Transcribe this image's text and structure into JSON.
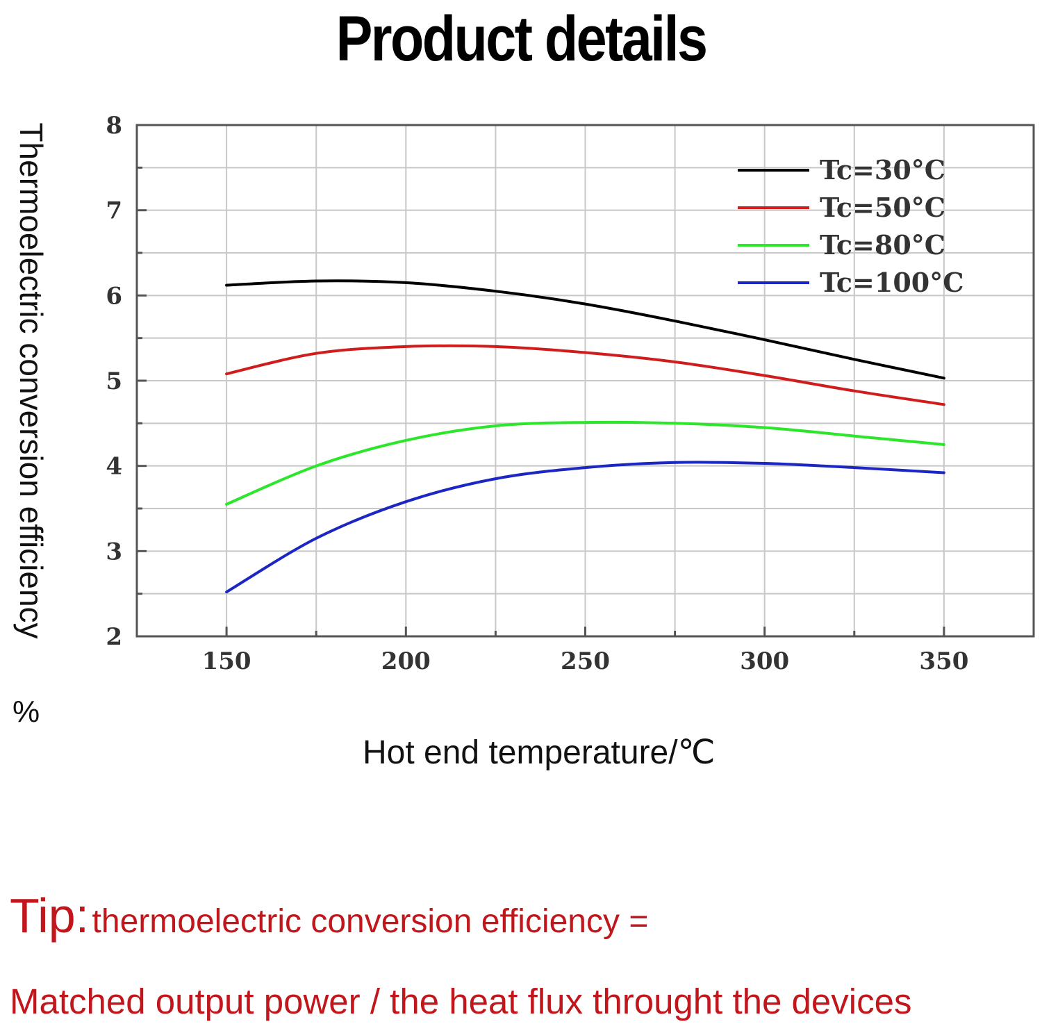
{
  "title": "Product details",
  "tip": {
    "label": "Tip:",
    "line1": "thermoelectric conversion efficiency =",
    "line2": "Matched output power / the heat flux throught the devices"
  },
  "chart_data": {
    "type": "line",
    "title": "Product details",
    "xlabel": "Hot end temperature/℃",
    "ylabel": "Thermoelectric conversion efficiency",
    "yunit": "%",
    "xlim": [
      125,
      375
    ],
    "ylim": [
      2,
      8
    ],
    "xticks": [
      150,
      200,
      250,
      300,
      350
    ],
    "yticks": [
      2,
      3,
      4,
      5,
      6,
      7,
      8
    ],
    "grid": true,
    "legend_position": "top-right",
    "x": [
      150,
      175,
      200,
      225,
      250,
      275,
      300,
      325,
      350
    ],
    "series": [
      {
        "name": "Tc=30°C",
        "color": "#000000",
        "values": [
          6.12,
          6.17,
          6.15,
          6.05,
          5.9,
          5.7,
          5.48,
          5.25,
          5.03
        ]
      },
      {
        "name": "Tc=50°C",
        "color": "#d01c1c",
        "values": [
          5.08,
          5.32,
          5.4,
          5.4,
          5.33,
          5.22,
          5.06,
          4.88,
          4.72
        ]
      },
      {
        "name": "Tc=80°C",
        "color": "#2ce62c",
        "values": [
          3.55,
          4.0,
          4.3,
          4.47,
          4.51,
          4.5,
          4.45,
          4.35,
          4.25
        ]
      },
      {
        "name": "Tc=100°C",
        "color": "#1c26c2",
        "values": [
          2.52,
          3.15,
          3.58,
          3.85,
          3.98,
          4.04,
          4.03,
          3.98,
          3.92
        ]
      }
    ]
  }
}
